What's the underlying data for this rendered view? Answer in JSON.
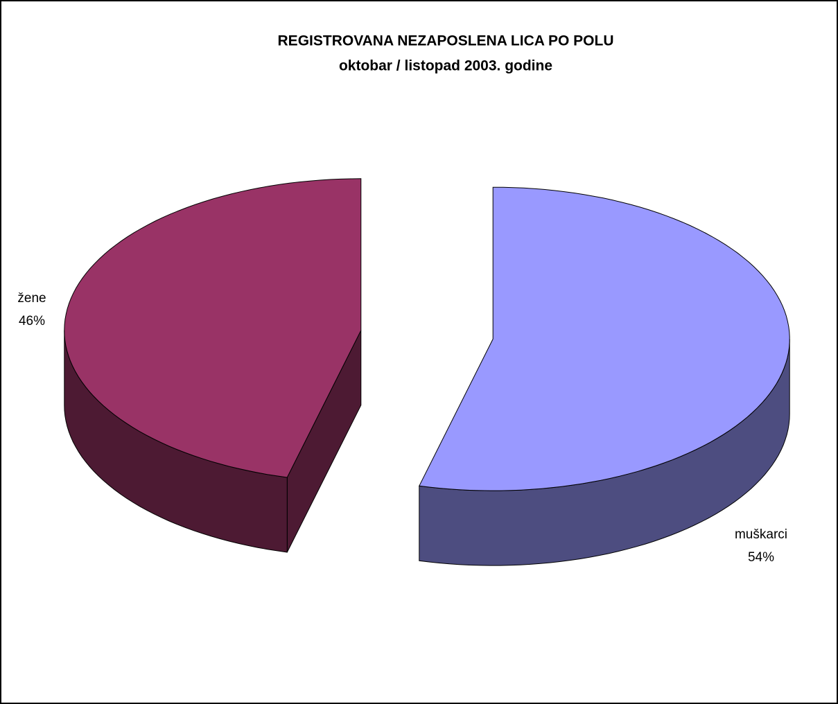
{
  "chart_data": {
    "type": "pie3d",
    "title": "REGISTROVANA NEZAPOSLENA LICA PO POLU",
    "subtitle": "oktobar / listopad  2003. godine",
    "categories": [
      "žene",
      "muškarci"
    ],
    "values": [
      46,
      54
    ],
    "value_labels": [
      "46%",
      "54%"
    ],
    "colors": [
      "#993366",
      "#9999ff"
    ]
  }
}
